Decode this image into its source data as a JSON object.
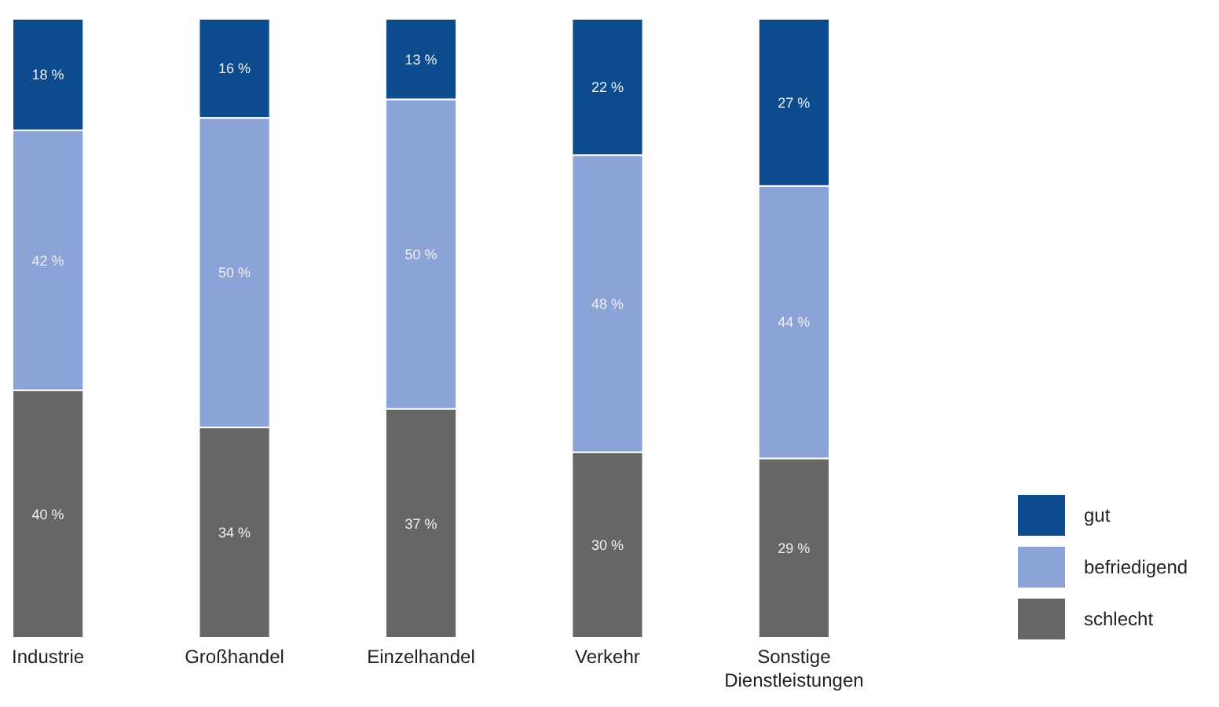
{
  "chart_data": {
    "type": "bar",
    "stacked": true,
    "categories": [
      "Industrie",
      "Großhandel",
      "Einzelhandel",
      "Verkehr",
      "Sonstige Dienstleistungen"
    ],
    "series": [
      {
        "name": "schlecht",
        "color": "#666666",
        "values": [
          40,
          34,
          37,
          30,
          29
        ],
        "value_labels": [
          "40 %",
          "34 %",
          "37 %",
          "30 %",
          "29 %"
        ]
      },
      {
        "name": "befriedigend",
        "color": "#8ba3d6",
        "values": [
          42,
          50,
          50,
          48,
          44
        ],
        "value_labels": [
          "42 %",
          "50 %",
          "50 %",
          "48 %",
          "44 %"
        ]
      },
      {
        "name": "gut",
        "color": "#0b4b8e",
        "values": [
          18,
          16,
          13,
          22,
          27
        ],
        "value_labels": [
          "18 %",
          "16 %",
          "13 %",
          "22 %",
          "27 %"
        ]
      }
    ],
    "legend": "bottom right"
  }
}
